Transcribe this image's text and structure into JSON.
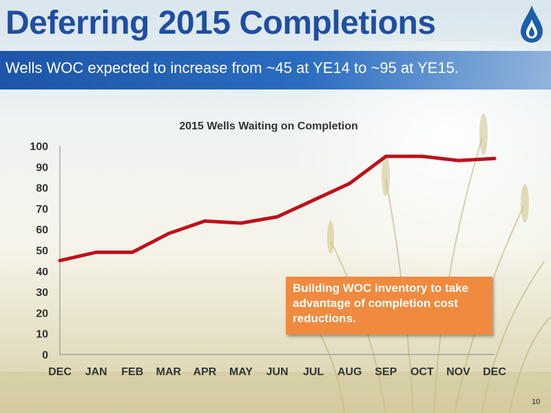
{
  "slide": {
    "title": "Deferring 2015 Completions",
    "subtitle": "Wells WOC expected to increase from ~45 at YE14 to ~95 at YE15.",
    "callout": "Building WOC inventory to take advantage of completion cost reductions.",
    "page_number": "10"
  },
  "colors": {
    "title": "#1f4ea3",
    "banner": "#1e56a8",
    "line": "#c0101a",
    "callout": "#f08a3e",
    "logo": "#1b5faa"
  },
  "icons": {
    "logo": "flame-drop-logo-icon"
  },
  "chart_data": {
    "type": "line",
    "title": "2015 Wells Waiting on Completion",
    "categories": [
      "DEC",
      "JAN",
      "FEB",
      "MAR",
      "APR",
      "MAY",
      "JUN",
      "JUL",
      "AUG",
      "SEP",
      "OCT",
      "NOV",
      "DEC"
    ],
    "series": [
      {
        "values": [
          45,
          49,
          49,
          58,
          64,
          63,
          66,
          74,
          82,
          95,
          95,
          93,
          94
        ]
      }
    ],
    "ylim": [
      0,
      100
    ],
    "yticks": [
      0,
      10,
      20,
      30,
      40,
      50,
      60,
      70,
      80,
      90,
      100
    ],
    "xlabel": "",
    "ylabel": "",
    "grid": false,
    "legend": "none"
  }
}
